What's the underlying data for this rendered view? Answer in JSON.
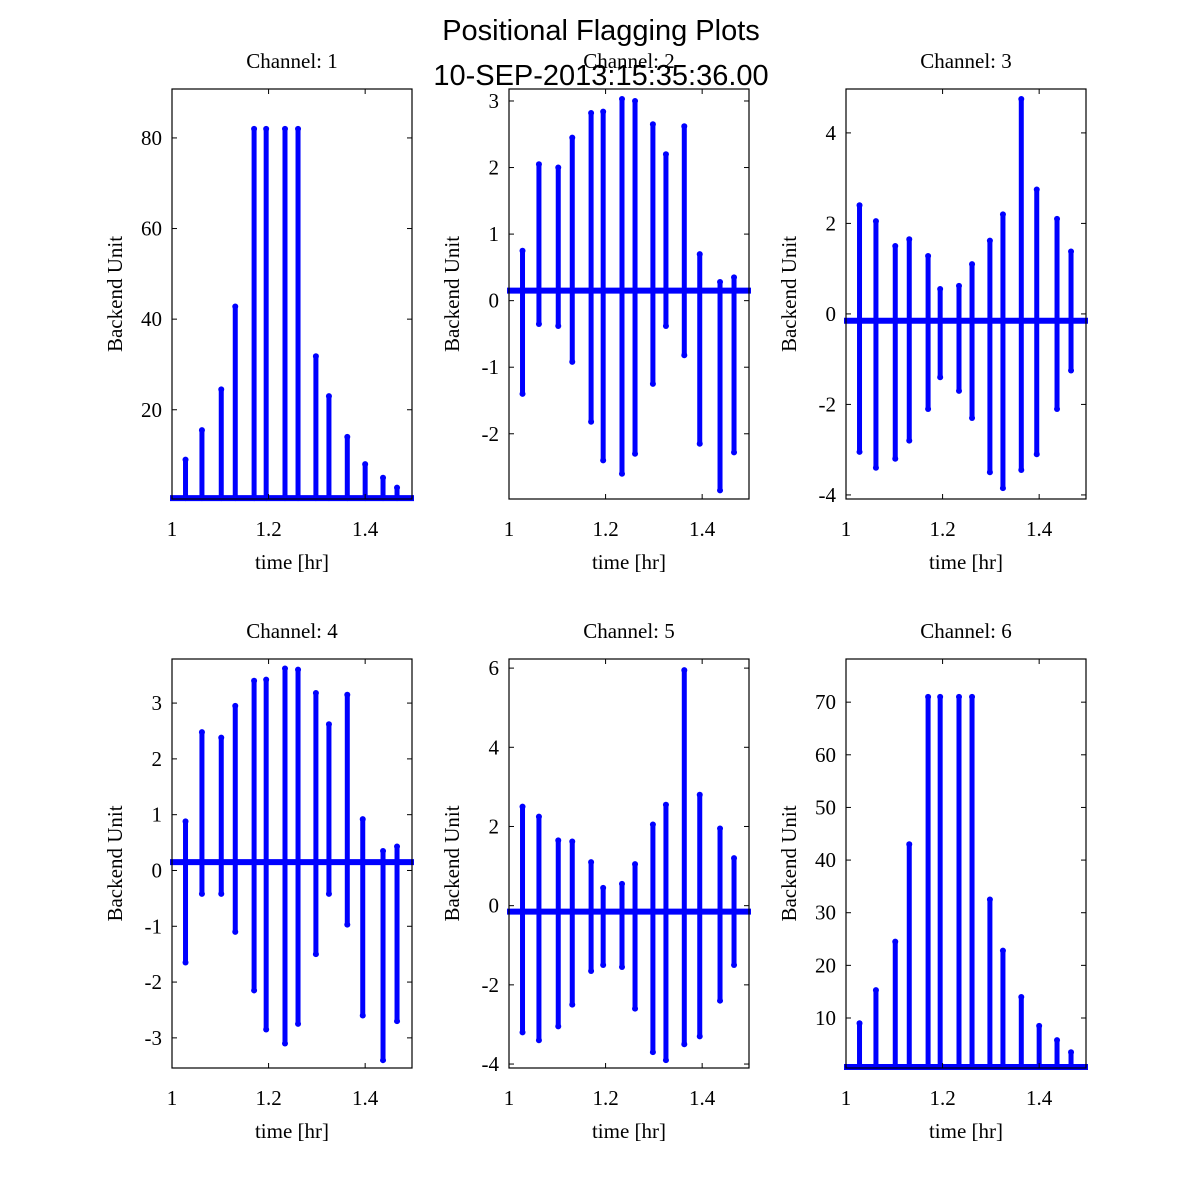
{
  "figure": {
    "title_line1": "Positional Flagging Plots",
    "title_line2": "10-SEP-2013:15:35:36.00"
  },
  "colors": {
    "data": "#0000ff",
    "axes": "#000000",
    "background": "#ffffff"
  },
  "chart_data": [
    {
      "type": "scatter",
      "title": "Channel: 1",
      "xlabel": "time [hr]",
      "ylabel": "Backend Unit",
      "xlim": [
        1,
        1.497
      ],
      "ylim": [
        0.3,
        90.8
      ],
      "xticks": [
        1,
        1.2,
        1.4
      ],
      "xtick_labels": [
        "1",
        "1.2",
        "1.4"
      ],
      "yticks": [
        20,
        40,
        60,
        80
      ],
      "ytick_labels": [
        "20",
        "40",
        "60",
        "80"
      ],
      "baseline": 0.5,
      "stripes": [
        {
          "x": 1.028,
          "min": 0.5,
          "max": 9
        },
        {
          "x": 1.062,
          "min": 0.5,
          "max": 15.5
        },
        {
          "x": 1.102,
          "min": 0.5,
          "max": 24.5
        },
        {
          "x": 1.131,
          "min": 0.5,
          "max": 42.8
        },
        {
          "x": 1.17,
          "min": 0.5,
          "max": 82
        },
        {
          "x": 1.195,
          "min": 0.5,
          "max": 82
        },
        {
          "x": 1.234,
          "min": 0.5,
          "max": 82
        },
        {
          "x": 1.261,
          "min": 0.5,
          "max": 82
        },
        {
          "x": 1.298,
          "min": 0.5,
          "max": 31.8
        },
        {
          "x": 1.325,
          "min": 0.5,
          "max": 23
        },
        {
          "x": 1.363,
          "min": 0.5,
          "max": 14
        },
        {
          "x": 1.4,
          "min": 0.5,
          "max": 8
        },
        {
          "x": 1.437,
          "min": 0.5,
          "max": 5
        },
        {
          "x": 1.466,
          "min": 0.5,
          "max": 2.8
        }
      ]
    },
    {
      "type": "scatter",
      "title": "Channel: 2",
      "xlabel": "time [hr]",
      "ylabel": "Backend Unit",
      "xlim": [
        1,
        1.497
      ],
      "ylim": [
        -2.98,
        3.18
      ],
      "xticks": [
        1,
        1.2,
        1.4
      ],
      "xtick_labels": [
        "1",
        "1.2",
        "1.4"
      ],
      "yticks": [
        -2,
        -1,
        0,
        1,
        2,
        3
      ],
      "ytick_labels": [
        "-2",
        "-1",
        "0",
        "1",
        "2",
        "3"
      ],
      "baseline": 0.15,
      "stripes": [
        {
          "x": 1.028,
          "min": -1.4,
          "max": 0.75
        },
        {
          "x": 1.062,
          "min": -0.35,
          "max": 2.05
        },
        {
          "x": 1.102,
          "min": -0.38,
          "max": 2.0
        },
        {
          "x": 1.131,
          "min": -0.92,
          "max": 2.45
        },
        {
          "x": 1.17,
          "min": -1.82,
          "max": 2.82
        },
        {
          "x": 1.195,
          "min": -2.4,
          "max": 2.84
        },
        {
          "x": 1.234,
          "min": -2.6,
          "max": 3.03
        },
        {
          "x": 1.261,
          "min": -2.3,
          "max": 3.0
        },
        {
          "x": 1.298,
          "min": -1.25,
          "max": 2.65
        },
        {
          "x": 1.325,
          "min": -0.38,
          "max": 2.2
        },
        {
          "x": 1.363,
          "min": -0.82,
          "max": 2.62
        },
        {
          "x": 1.395,
          "min": -2.15,
          "max": 0.7
        },
        {
          "x": 1.437,
          "min": -2.85,
          "max": 0.28
        },
        {
          "x": 1.466,
          "min": -2.28,
          "max": 0.35
        }
      ]
    },
    {
      "type": "scatter",
      "title": "Channel: 3",
      "xlabel": "time [hr]",
      "ylabel": "Backend Unit",
      "xlim": [
        1,
        1.497
      ],
      "ylim": [
        -4.09,
        4.97
      ],
      "xticks": [
        1,
        1.2,
        1.4
      ],
      "xtick_labels": [
        "1",
        "1.2",
        "1.4"
      ],
      "yticks": [
        -4,
        -2,
        0,
        2,
        4
      ],
      "ytick_labels": [
        "-4",
        "-2",
        "0",
        "2",
        "4"
      ],
      "baseline": -0.15,
      "stripes": [
        {
          "x": 1.028,
          "min": -3.05,
          "max": 2.4
        },
        {
          "x": 1.062,
          "min": -3.4,
          "max": 2.05
        },
        {
          "x": 1.102,
          "min": -3.2,
          "max": 1.5
        },
        {
          "x": 1.131,
          "min": -2.8,
          "max": 1.65
        },
        {
          "x": 1.17,
          "min": -2.1,
          "max": 1.28
        },
        {
          "x": 1.195,
          "min": -1.4,
          "max": 0.55
        },
        {
          "x": 1.234,
          "min": -1.7,
          "max": 0.62
        },
        {
          "x": 1.261,
          "min": -2.3,
          "max": 1.1
        },
        {
          "x": 1.298,
          "min": -3.5,
          "max": 1.62
        },
        {
          "x": 1.325,
          "min": -3.85,
          "max": 2.2
        },
        {
          "x": 1.363,
          "min": -3.45,
          "max": 4.75
        },
        {
          "x": 1.395,
          "min": -3.1,
          "max": 2.75
        },
        {
          "x": 1.437,
          "min": -2.1,
          "max": 2.1
        },
        {
          "x": 1.466,
          "min": -1.25,
          "max": 1.38
        }
      ]
    },
    {
      "type": "scatter",
      "title": "Channel: 4",
      "xlabel": "time [hr]",
      "ylabel": "Backend Unit",
      "xlim": [
        1,
        1.497
      ],
      "ylim": [
        -3.54,
        3.79
      ],
      "xticks": [
        1,
        1.2,
        1.4
      ],
      "xtick_labels": [
        "1",
        "1.2",
        "1.4"
      ],
      "yticks": [
        -3,
        -2,
        -1,
        0,
        1,
        2,
        3
      ],
      "ytick_labels": [
        "-3",
        "-2",
        "-1",
        "0",
        "1",
        "2",
        "3"
      ],
      "baseline": 0.15,
      "stripes": [
        {
          "x": 1.028,
          "min": -1.65,
          "max": 0.88
        },
        {
          "x": 1.062,
          "min": -0.42,
          "max": 2.48
        },
        {
          "x": 1.102,
          "min": -0.42,
          "max": 2.38
        },
        {
          "x": 1.131,
          "min": -1.1,
          "max": 2.95
        },
        {
          "x": 1.17,
          "min": -2.15,
          "max": 3.4
        },
        {
          "x": 1.195,
          "min": -2.85,
          "max": 3.42
        },
        {
          "x": 1.234,
          "min": -3.1,
          "max": 3.62
        },
        {
          "x": 1.261,
          "min": -2.75,
          "max": 3.6
        },
        {
          "x": 1.298,
          "min": -1.5,
          "max": 3.18
        },
        {
          "x": 1.325,
          "min": -0.42,
          "max": 2.62
        },
        {
          "x": 1.363,
          "min": -0.97,
          "max": 3.15
        },
        {
          "x": 1.395,
          "min": -2.6,
          "max": 0.92
        },
        {
          "x": 1.437,
          "min": -3.4,
          "max": 0.35
        },
        {
          "x": 1.466,
          "min": -2.7,
          "max": 0.43
        }
      ]
    },
    {
      "type": "scatter",
      "title": "Channel: 5",
      "xlabel": "time [hr]",
      "ylabel": "Backend Unit",
      "xlim": [
        1,
        1.497
      ],
      "ylim": [
        -4.1,
        6.23
      ],
      "xticks": [
        1,
        1.2,
        1.4
      ],
      "xtick_labels": [
        "1",
        "1.2",
        "1.4"
      ],
      "yticks": [
        -4,
        -2,
        0,
        2,
        4,
        6
      ],
      "ytick_labels": [
        "-4",
        "-2",
        "0",
        "2",
        "4",
        "6"
      ],
      "baseline": -0.15,
      "stripes": [
        {
          "x": 1.028,
          "min": -3.2,
          "max": 2.5
        },
        {
          "x": 1.062,
          "min": -3.4,
          "max": 2.25
        },
        {
          "x": 1.102,
          "min": -3.05,
          "max": 1.65
        },
        {
          "x": 1.131,
          "min": -2.5,
          "max": 1.62
        },
        {
          "x": 1.17,
          "min": -1.65,
          "max": 1.1
        },
        {
          "x": 1.195,
          "min": -1.5,
          "max": 0.45
        },
        {
          "x": 1.234,
          "min": -1.55,
          "max": 0.55
        },
        {
          "x": 1.261,
          "min": -2.6,
          "max": 1.05
        },
        {
          "x": 1.298,
          "min": -3.7,
          "max": 2.05
        },
        {
          "x": 1.325,
          "min": -3.9,
          "max": 2.55
        },
        {
          "x": 1.363,
          "min": -3.5,
          "max": 5.95
        },
        {
          "x": 1.395,
          "min": -3.3,
          "max": 2.8
        },
        {
          "x": 1.437,
          "min": -2.4,
          "max": 1.95
        },
        {
          "x": 1.466,
          "min": -1.5,
          "max": 1.2
        }
      ]
    },
    {
      "type": "scatter",
      "title": "Channel: 6",
      "xlabel": "time [hr]",
      "ylabel": "Backend Unit",
      "xlim": [
        1,
        1.497
      ],
      "ylim": [
        0.5,
        78.2
      ],
      "xticks": [
        1,
        1.2,
        1.4
      ],
      "xtick_labels": [
        "1",
        "1.2",
        "1.4"
      ],
      "yticks": [
        10,
        20,
        30,
        40,
        50,
        60,
        70
      ],
      "ytick_labels": [
        "10",
        "20",
        "30",
        "40",
        "50",
        "60",
        "70"
      ],
      "baseline": 0.7,
      "stripes": [
        {
          "x": 1.028,
          "min": 0.7,
          "max": 9
        },
        {
          "x": 1.062,
          "min": 0.7,
          "max": 15.3
        },
        {
          "x": 1.102,
          "min": 0.7,
          "max": 24.5
        },
        {
          "x": 1.131,
          "min": 0.7,
          "max": 43
        },
        {
          "x": 1.17,
          "min": 0.7,
          "max": 71
        },
        {
          "x": 1.195,
          "min": 0.7,
          "max": 71
        },
        {
          "x": 1.234,
          "min": 0.7,
          "max": 71
        },
        {
          "x": 1.261,
          "min": 0.7,
          "max": 71
        },
        {
          "x": 1.298,
          "min": 0.7,
          "max": 32.5
        },
        {
          "x": 1.325,
          "min": 0.7,
          "max": 22.8
        },
        {
          "x": 1.363,
          "min": 0.7,
          "max": 14
        },
        {
          "x": 1.4,
          "min": 0.7,
          "max": 8.5
        },
        {
          "x": 1.437,
          "min": 0.7,
          "max": 5.8
        },
        {
          "x": 1.466,
          "min": 0.7,
          "max": 3.5
        }
      ]
    }
  ]
}
